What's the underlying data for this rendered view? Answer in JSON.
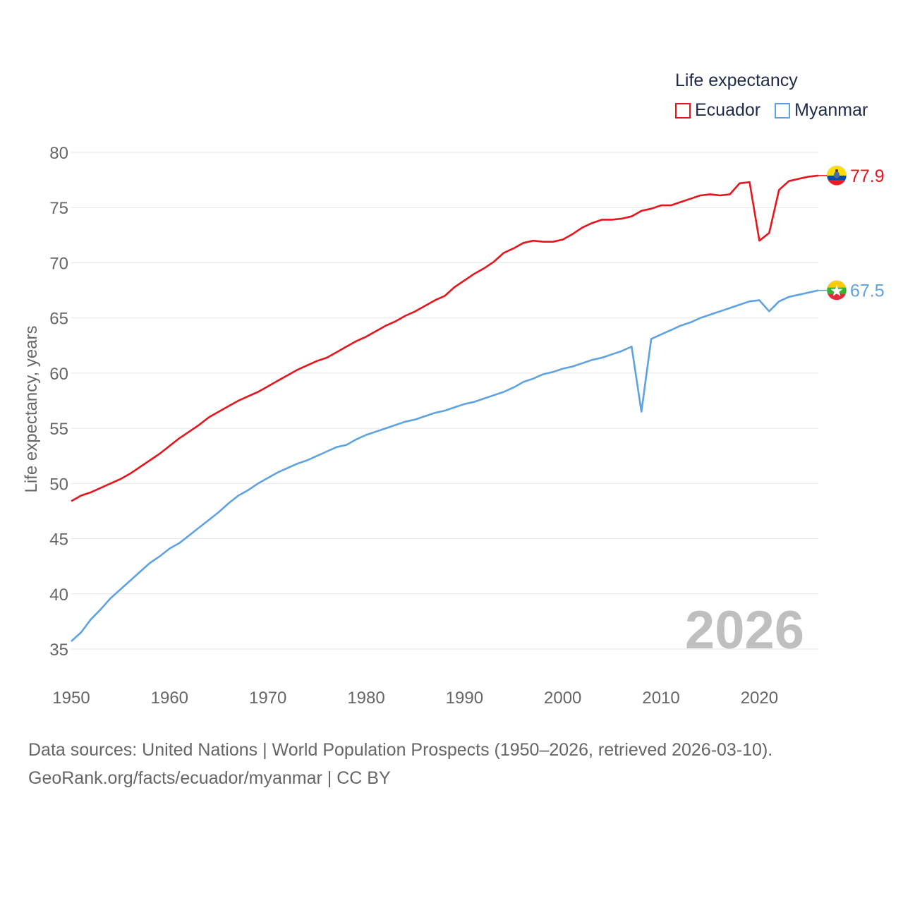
{
  "legend": {
    "title": "Life expectancy",
    "items": [
      {
        "label": "Ecuador",
        "color": "#e8141c"
      },
      {
        "label": "Myanmar",
        "color": "#5ea2e2"
      }
    ]
  },
  "year_display": "2026",
  "source": {
    "line1": "Data sources: United Nations | World Population Prospects (1950–2026, retrieved 2026-03-10).",
    "line2": "GeoRank.org/facts/ecuador/myanmar | CC BY"
  },
  "chart_data": {
    "type": "line",
    "title": "Life expectancy",
    "xlabel": "",
    "ylabel": "Life expectancy, years",
    "xlim": [
      1950,
      2026
    ],
    "ylim": [
      35,
      80
    ],
    "x_ticks": [
      1950,
      1960,
      1970,
      1980,
      1990,
      2000,
      2010,
      2020
    ],
    "y_ticks": [
      35,
      40,
      45,
      50,
      55,
      60,
      65,
      70,
      75,
      80
    ],
    "grid": true,
    "legend_position": "top-right",
    "x": [
      1950,
      1951,
      1952,
      1953,
      1954,
      1955,
      1956,
      1957,
      1958,
      1959,
      1960,
      1961,
      1962,
      1963,
      1964,
      1965,
      1966,
      1967,
      1968,
      1969,
      1970,
      1971,
      1972,
      1973,
      1974,
      1975,
      1976,
      1977,
      1978,
      1979,
      1980,
      1981,
      1982,
      1983,
      1984,
      1985,
      1986,
      1987,
      1988,
      1989,
      1990,
      1991,
      1992,
      1993,
      1994,
      1995,
      1996,
      1997,
      1998,
      1999,
      2000,
      2001,
      2002,
      2003,
      2004,
      2005,
      2006,
      2007,
      2008,
      2009,
      2010,
      2011,
      2012,
      2013,
      2014,
      2015,
      2016,
      2017,
      2018,
      2019,
      2020,
      2021,
      2022,
      2023,
      2024,
      2025,
      2026
    ],
    "series": [
      {
        "name": "Ecuador",
        "color": "#e8141c",
        "end_label": "77.9",
        "values": [
          48.4,
          48.9,
          49.2,
          49.6,
          50.0,
          50.4,
          50.9,
          51.5,
          52.1,
          52.7,
          53.4,
          54.1,
          54.7,
          55.3,
          56.0,
          56.5,
          57.0,
          57.5,
          57.9,
          58.3,
          58.8,
          59.3,
          59.8,
          60.3,
          60.7,
          61.1,
          61.4,
          61.9,
          62.4,
          62.9,
          63.3,
          63.8,
          64.3,
          64.7,
          65.2,
          65.6,
          66.1,
          66.6,
          67.0,
          67.8,
          68.4,
          69.0,
          69.5,
          70.1,
          70.9,
          71.3,
          71.8,
          72.0,
          71.9,
          71.9,
          72.1,
          72.6,
          73.2,
          73.6,
          73.9,
          73.9,
          74.0,
          74.2,
          74.7,
          74.9,
          75.2,
          75.2,
          75.5,
          75.8,
          76.1,
          76.2,
          76.1,
          76.2,
          77.2,
          77.3,
          72.0,
          72.7,
          76.6,
          77.4,
          77.6,
          77.8,
          77.9
        ]
      },
      {
        "name": "Myanmar",
        "color": "#5ea2e2",
        "end_label": "67.5",
        "values": [
          35.7,
          36.5,
          37.7,
          38.6,
          39.6,
          40.4,
          41.2,
          42.0,
          42.8,
          43.4,
          44.1,
          44.6,
          45.3,
          46.0,
          46.7,
          47.4,
          48.2,
          48.9,
          49.4,
          50.0,
          50.5,
          51.0,
          51.4,
          51.8,
          52.1,
          52.5,
          52.9,
          53.3,
          53.5,
          54.0,
          54.4,
          54.7,
          55.0,
          55.3,
          55.6,
          55.8,
          56.1,
          56.4,
          56.6,
          56.9,
          57.2,
          57.4,
          57.7,
          58.0,
          58.3,
          58.7,
          59.2,
          59.5,
          59.9,
          60.1,
          60.4,
          60.6,
          60.9,
          61.2,
          61.4,
          61.7,
          62.0,
          62.4,
          56.5,
          63.1,
          63.5,
          63.9,
          64.3,
          64.6,
          65.0,
          65.3,
          65.6,
          65.9,
          66.2,
          66.5,
          66.6,
          65.6,
          66.5,
          66.9,
          67.1,
          67.3,
          67.5
        ]
      }
    ]
  }
}
